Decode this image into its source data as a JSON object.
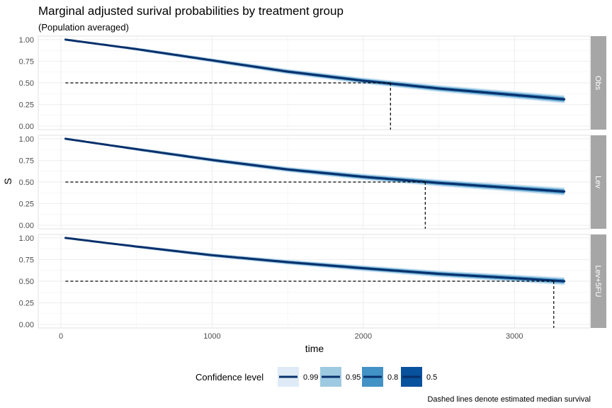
{
  "chart_data": {
    "type": "line",
    "title": "Marginal adjusted surival probabilities by treatment group",
    "subtitle": "(Population averaged)",
    "xlabel": "time",
    "ylabel": "S",
    "xlim": [
      -150,
      3500
    ],
    "ylim": [
      -0.04,
      1.04
    ],
    "x_ticks": [
      0,
      1000,
      2000,
      3000
    ],
    "y_ticks": [
      0,
      0.25,
      0.5,
      0.75,
      1
    ],
    "x_tick_labels": [
      "0",
      "1000",
      "2000",
      "3000"
    ],
    "y_tick_labels": [
      "0.00",
      "0.25",
      "0.50",
      "0.75",
      "1.00"
    ],
    "grid": true,
    "facets": [
      {
        "label": "Obs",
        "median_time": 2180,
        "series": {
          "x": [
            30,
            500,
            1000,
            1500,
            2000,
            2500,
            3000,
            3330
          ],
          "y": [
            1.0,
            0.89,
            0.76,
            0.63,
            0.525,
            0.435,
            0.36,
            0.31
          ]
        },
        "band_halfwidths": [
          0.0,
          0.02,
          0.026,
          0.032,
          0.038,
          0.042,
          0.046,
          0.05
        ]
      },
      {
        "label": "Lev",
        "median_time": 2410,
        "series": {
          "x": [
            30,
            500,
            1000,
            1500,
            2000,
            2500,
            3000,
            3330
          ],
          "y": [
            1.0,
            0.88,
            0.755,
            0.645,
            0.56,
            0.49,
            0.43,
            0.39
          ]
        },
        "band_halfwidths": [
          0.0,
          0.02,
          0.026,
          0.032,
          0.038,
          0.042,
          0.046,
          0.05
        ]
      },
      {
        "label": "Lev+5FU",
        "median_time": 3260,
        "series": {
          "x": [
            30,
            500,
            1000,
            1500,
            2000,
            2500,
            3000,
            3330
          ],
          "y": [
            1.0,
            0.9,
            0.8,
            0.72,
            0.65,
            0.585,
            0.535,
            0.5
          ]
        },
        "band_halfwidths": [
          0.0,
          0.018,
          0.024,
          0.03,
          0.036,
          0.04,
          0.044,
          0.048
        ]
      }
    ],
    "median_reference_y": 0.5,
    "legend": {
      "title": "Confidence level",
      "placement": "bottom",
      "entries": [
        {
          "label": "0.99",
          "color": "#deebf7"
        },
        {
          "label": "0.95",
          "color": "#9ecae1"
        },
        {
          "label": "0.8",
          "color": "#4292c6"
        },
        {
          "label": "0.5",
          "color": "#08519c"
        }
      ]
    },
    "line_color": "#08306b",
    "caption": "Dashed lines denote estimated median survival"
  }
}
